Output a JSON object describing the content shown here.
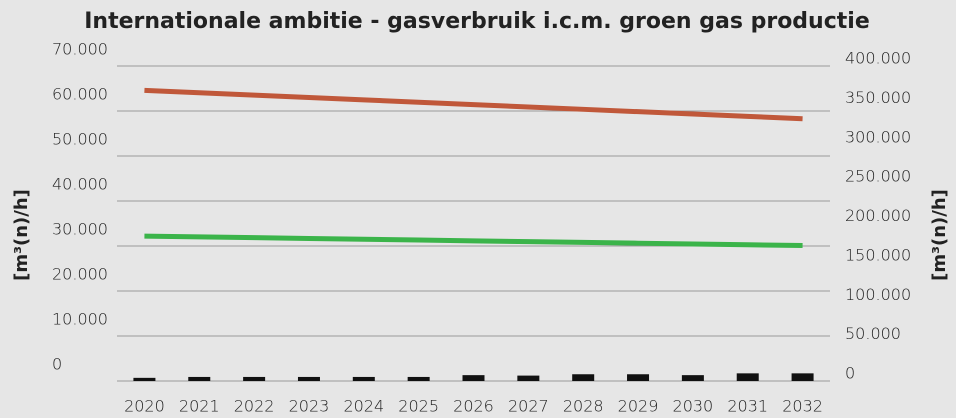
{
  "chart_data": {
    "type": "bar_line",
    "title": "Internationale ambitie - gasverbruik i.c.m. groen gas productie",
    "ylabel": "[m³(n)/h]",
    "y2label": "[m³(n)/h]",
    "categories": [
      "2020",
      "2021",
      "2022",
      "2023",
      "2024",
      "2025",
      "2026",
      "2027",
      "2028",
      "2029",
      "2030",
      "2031",
      "2032"
    ],
    "series": [
      {
        "type": "bar",
        "color": "#111111",
        "axis": "y",
        "values": [
          700,
          900,
          900,
          900,
          900,
          900,
          1300,
          1200,
          1500,
          1500,
          1300,
          1700,
          1700
        ]
      },
      {
        "type": "line",
        "color": "#c0583a",
        "axis": "y2",
        "values": [
          369000,
          366000,
          363000,
          360000,
          357000,
          354000,
          351000,
          348000,
          345000,
          342000,
          339000,
          336000,
          333000
        ]
      },
      {
        "type": "line",
        "color": "#3bb44a",
        "axis": "y2",
        "values": [
          184000,
          183000,
          182000,
          181000,
          180000,
          179000,
          178000,
          177000,
          176000,
          175000,
          174000,
          173000,
          172000
        ]
      }
    ],
    "ylim": [
      0,
      70000
    ],
    "yticks": [
      0,
      {
        "value": 10000,
        "label": "10.000"
      },
      {
        "value": 20000,
        "label": "20.000"
      },
      {
        "value": 30000,
        "label": "30.000"
      },
      {
        "value": 40000,
        "label": "40.000"
      },
      {
        "value": 50000,
        "label": "50.000"
      },
      {
        "value": 60000,
        "label": "60.000"
      },
      {
        "value": 70000,
        "label": "70.000"
      }
    ],
    "y2lim": [
      0,
      400000
    ],
    "y2ticks": [
      0,
      {
        "value": 50000,
        "label": "50.000"
      },
      {
        "value": 100000,
        "label": "100.000"
      },
      {
        "value": 150000,
        "label": "150.000"
      },
      {
        "value": 200000,
        "label": "200.000"
      },
      {
        "value": 250000,
        "label": "250.000"
      },
      {
        "value": 300000,
        "label": "300.000"
      },
      {
        "value": 350000,
        "label": "350.000"
      },
      {
        "value": 400000,
        "label": "400.000"
      }
    ],
    "grid": true
  }
}
